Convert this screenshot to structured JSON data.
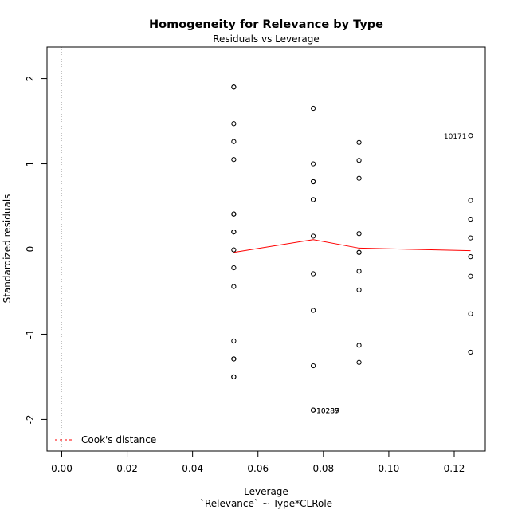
{
  "chart_data": {
    "type": "scatter",
    "title": "Homogeneity for Relevance by Type",
    "subtitle": "Residuals vs Leverage",
    "xlabel": "Leverage",
    "xlabel2": "`Relevance` ~ Type*CLRole",
    "ylabel": "Standardized residuals",
    "xlim": [
      -0.0045,
      0.1295
    ],
    "ylim": [
      -2.37,
      2.37
    ],
    "x_ticks": [
      0.0,
      0.02,
      0.04,
      0.06,
      0.08,
      0.1,
      0.12
    ],
    "x_tick_labels": [
      "0.00",
      "0.02",
      "0.04",
      "0.06",
      "0.08",
      "0.10",
      "0.12"
    ],
    "y_ticks": [
      -2,
      -1,
      0,
      1,
      2
    ],
    "y_tick_labels": [
      "-2",
      "-1",
      "0",
      "1",
      "2"
    ],
    "reference_lines": {
      "x": 0,
      "y": 0,
      "color": "#c0c0c0",
      "style": "dotted"
    },
    "points": [
      {
        "x": 0.0526,
        "y": 1.9
      },
      {
        "x": 0.0526,
        "y": 1.9
      },
      {
        "x": 0.0526,
        "y": 1.47
      },
      {
        "x": 0.0526,
        "y": 1.26
      },
      {
        "x": 0.0526,
        "y": 1.05
      },
      {
        "x": 0.0526,
        "y": 0.41
      },
      {
        "x": 0.0526,
        "y": 0.41
      },
      {
        "x": 0.0526,
        "y": 0.2
      },
      {
        "x": 0.0526,
        "y": 0.2
      },
      {
        "x": 0.0526,
        "y": -0.01
      },
      {
        "x": 0.0526,
        "y": -0.22
      },
      {
        "x": 0.0526,
        "y": -0.44
      },
      {
        "x": 0.0526,
        "y": -1.08
      },
      {
        "x": 0.0526,
        "y": -1.29
      },
      {
        "x": 0.0526,
        "y": -1.29
      },
      {
        "x": 0.0526,
        "y": -1.5
      },
      {
        "x": 0.0526,
        "y": -1.5
      },
      {
        "x": 0.0769,
        "y": 1.65
      },
      {
        "x": 0.0769,
        "y": 1.0
      },
      {
        "x": 0.0769,
        "y": 0.79
      },
      {
        "x": 0.0769,
        "y": 0.79
      },
      {
        "x": 0.0769,
        "y": 0.58
      },
      {
        "x": 0.0769,
        "y": 0.58
      },
      {
        "x": 0.0769,
        "y": 0.15
      },
      {
        "x": 0.0769,
        "y": -0.29
      },
      {
        "x": 0.0769,
        "y": -0.72
      },
      {
        "x": 0.0769,
        "y": -1.37
      },
      {
        "x": 0.0769,
        "y": -1.89
      },
      {
        "x": 0.0769,
        "y": -1.89
      },
      {
        "x": 0.0909,
        "y": 1.25
      },
      {
        "x": 0.0909,
        "y": 1.04
      },
      {
        "x": 0.0909,
        "y": 0.83
      },
      {
        "x": 0.0909,
        "y": 0.18
      },
      {
        "x": 0.0909,
        "y": -0.04
      },
      {
        "x": 0.0909,
        "y": -0.04
      },
      {
        "x": 0.0909,
        "y": -0.26
      },
      {
        "x": 0.0909,
        "y": -0.48
      },
      {
        "x": 0.0909,
        "y": -1.13
      },
      {
        "x": 0.0909,
        "y": -1.33
      },
      {
        "x": 0.125,
        "y": 1.33
      },
      {
        "x": 0.125,
        "y": 0.57
      },
      {
        "x": 0.125,
        "y": 0.35
      },
      {
        "x": 0.125,
        "y": 0.13
      },
      {
        "x": 0.125,
        "y": -0.09
      },
      {
        "x": 0.125,
        "y": -0.32
      },
      {
        "x": 0.125,
        "y": -0.76
      },
      {
        "x": 0.125,
        "y": -1.21
      }
    ],
    "point_labels": [
      {
        "text": "10171",
        "x": 0.125,
        "y": 1.33,
        "side": "left"
      },
      {
        "text": "10289",
        "x": 0.0769,
        "y": -1.89,
        "side": "right"
      },
      {
        "text": "10287",
        "x": 0.0769,
        "y": -1.89,
        "side": "right"
      }
    ],
    "smoother": {
      "color": "#ff0000",
      "points": [
        {
          "x": 0.0526,
          "y": -0.04
        },
        {
          "x": 0.0769,
          "y": 0.11
        },
        {
          "x": 0.0909,
          "y": 0.01
        },
        {
          "x": 0.125,
          "y": -0.02
        }
      ]
    },
    "legend": {
      "position": "bottom-left",
      "entries": [
        {
          "label": "Cook's distance",
          "color": "#ff0000",
          "style": "dashed"
        }
      ]
    }
  }
}
